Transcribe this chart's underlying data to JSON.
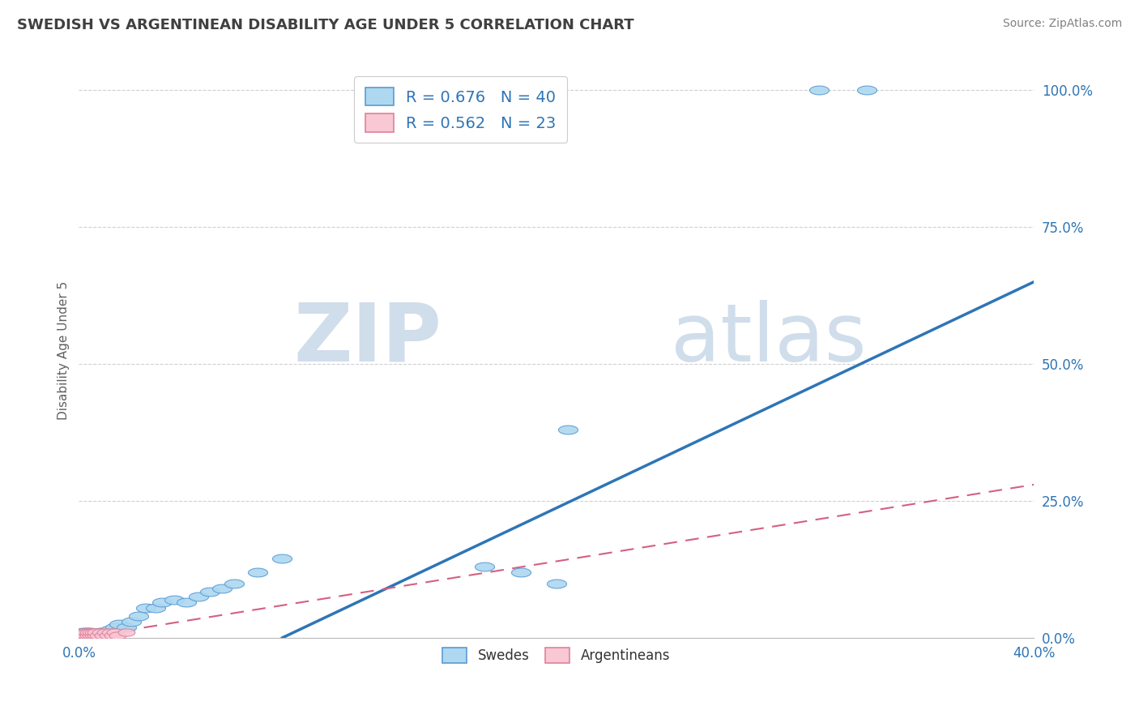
{
  "title": "SWEDISH VS ARGENTINEAN DISABILITY AGE UNDER 5 CORRELATION CHART",
  "source": "Source: ZipAtlas.com",
  "ylabel": "Disability Age Under 5",
  "xlim": [
    0.0,
    0.4
  ],
  "ylim": [
    0.0,
    1.05
  ],
  "ytick_labels": [
    "0.0%",
    "25.0%",
    "50.0%",
    "75.0%",
    "100.0%"
  ],
  "ytick_vals": [
    0.0,
    0.25,
    0.5,
    0.75,
    1.0
  ],
  "swedish_color": "#add8f0",
  "swedish_edge_color": "#5b9bd5",
  "swedish_line_color": "#2e75b6",
  "argentinean_color": "#f8c8d4",
  "argentinean_edge_color": "#e08098",
  "argentinean_line_color": "#d46080",
  "R_swedish": 0.676,
  "N_swedish": 40,
  "R_argentinean": 0.562,
  "N_argentinean": 23,
  "label_color": "#2e75b6",
  "watermark_color": "#c8d8e8",
  "background_color": "#ffffff",
  "grid_color": "#d0d0d0",
  "title_color": "#404040",
  "source_color": "#808080",
  "axis_label_color": "#606060",
  "swedish_line_x": [
    0.085,
    0.4
  ],
  "swedish_line_y": [
    0.0,
    0.65
  ],
  "argentinean_line_x": [
    0.0,
    0.4
  ],
  "argentinean_line_y": [
    0.0,
    0.28
  ],
  "swedish_pts_x": [
    0.001,
    0.002,
    0.002,
    0.003,
    0.003,
    0.004,
    0.004,
    0.005,
    0.005,
    0.006,
    0.007,
    0.008,
    0.009,
    0.01,
    0.01,
    0.011,
    0.012,
    0.013,
    0.015,
    0.017,
    0.02,
    0.022,
    0.025,
    0.028,
    0.032,
    0.035,
    0.04,
    0.045,
    0.05,
    0.055,
    0.06,
    0.065,
    0.075,
    0.085,
    0.17,
    0.185,
    0.2,
    0.205,
    0.31,
    0.33
  ],
  "swedish_pts_y": [
    0.005,
    0.005,
    0.01,
    0.005,
    0.01,
    0.005,
    0.01,
    0.005,
    0.01,
    0.005,
    0.005,
    0.005,
    0.01,
    0.005,
    0.01,
    0.005,
    0.01,
    0.015,
    0.02,
    0.025,
    0.02,
    0.03,
    0.04,
    0.055,
    0.055,
    0.065,
    0.07,
    0.065,
    0.075,
    0.085,
    0.09,
    0.1,
    0.12,
    0.145,
    0.13,
    0.12,
    0.1,
    0.38,
    1.0,
    1.0
  ],
  "arg_pts_x": [
    0.001,
    0.002,
    0.002,
    0.003,
    0.003,
    0.004,
    0.004,
    0.005,
    0.005,
    0.006,
    0.006,
    0.007,
    0.007,
    0.008,
    0.009,
    0.01,
    0.011,
    0.012,
    0.013,
    0.014,
    0.015,
    0.016,
    0.02
  ],
  "arg_pts_y": [
    0.005,
    0.005,
    0.01,
    0.005,
    0.01,
    0.005,
    0.01,
    0.005,
    0.01,
    0.005,
    0.01,
    0.005,
    0.01,
    0.005,
    0.01,
    0.005,
    0.01,
    0.005,
    0.01,
    0.005,
    0.01,
    0.005,
    0.01
  ]
}
